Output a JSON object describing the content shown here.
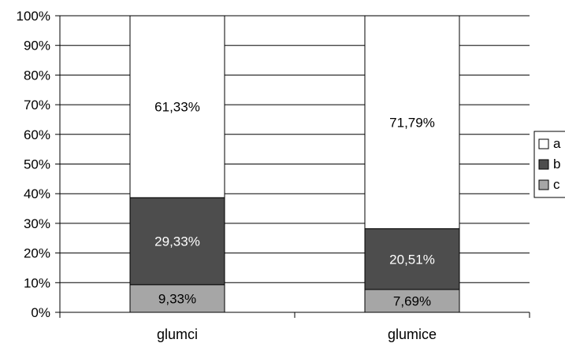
{
  "chart_data": {
    "type": "bar",
    "stacked": true,
    "normalized": true,
    "categories": [
      "glumci",
      "glumice"
    ],
    "series": [
      {
        "name": "c",
        "values": [
          9.33,
          7.69
        ],
        "labels": [
          "9,33%",
          "7,69%"
        ],
        "color": "#a6a6a6",
        "label_color": "#000000"
      },
      {
        "name": "b",
        "values": [
          29.33,
          20.51
        ],
        "labels": [
          "29,33%",
          "20,51%"
        ],
        "color": "#4d4d4d",
        "label_color": "#ffffff"
      },
      {
        "name": "a",
        "values": [
          61.33,
          71.79
        ],
        "labels": [
          "61,33%",
          "71,79%"
        ],
        "color": "#ffffff",
        "label_color": "#000000"
      }
    ],
    "ylim": [
      0,
      100
    ],
    "yticks": [
      "0%",
      "10%",
      "20%",
      "30%",
      "40%",
      "50%",
      "60%",
      "70%",
      "80%",
      "90%",
      "100%"
    ],
    "grid": true,
    "legend": {
      "position": "right",
      "items": [
        "a",
        "b",
        "c"
      ]
    },
    "title": "",
    "xlabel": "",
    "ylabel": ""
  }
}
